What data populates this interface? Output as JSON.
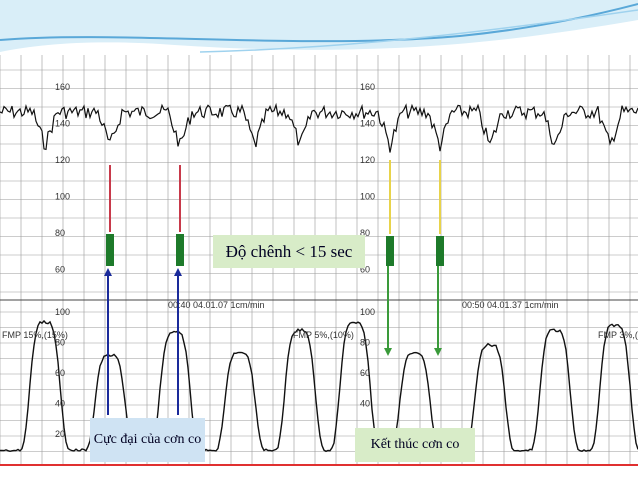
{
  "strips": {
    "fhr_labels": [
      "160",
      "140",
      "120",
      "100",
      "80",
      "60"
    ],
    "toco_labels": [
      "100",
      "80",
      "60",
      "40",
      "20"
    ],
    "stamps": [
      "00:40 04.01.07 1cm/min",
      "00:50 04.01.37 1cm/min"
    ],
    "fmp": [
      "FMP 15%,(15%)",
      "FMP 5%,(10%)",
      "FMP 3%,(8"
    ]
  },
  "callouts": {
    "difference": "Độ chênh < 15 sec",
    "peak": "Cực đại của cơn co",
    "end": "Kết thúc cơn co"
  }
}
